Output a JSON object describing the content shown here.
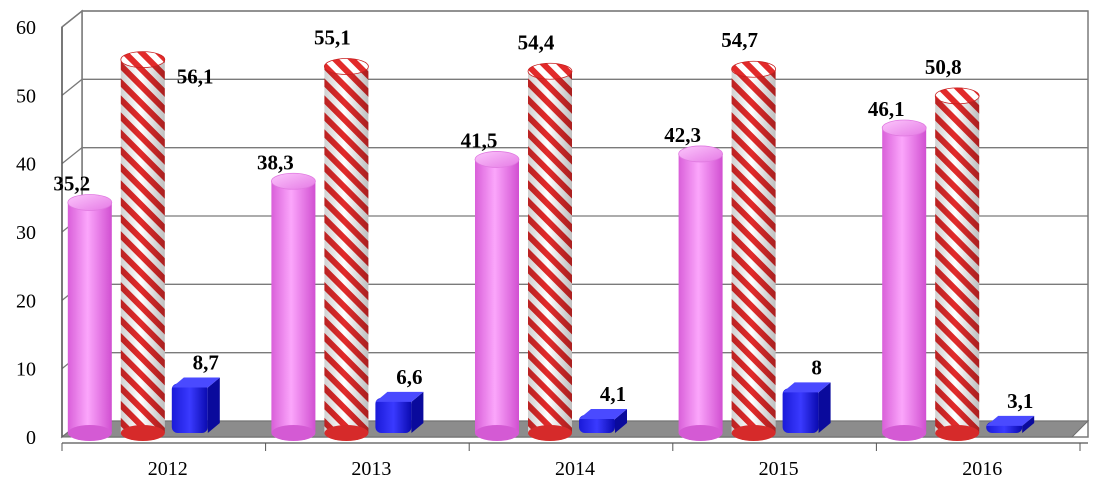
{
  "chart_data": {
    "type": "bar",
    "categories": [
      "2012",
      "2013",
      "2014",
      "2015",
      "2016"
    ],
    "series": [
      {
        "values": [
          35.2,
          38.3,
          41.5,
          42.3,
          46.1
        ],
        "color": "#f07cf0",
        "style": "solid-cylinder"
      },
      {
        "values": [
          56.1,
          55.1,
          54.4,
          54.7,
          50.8
        ],
        "color": "#e03030",
        "style": "diagonal-stripe-cylinder"
      },
      {
        "values": [
          8.7,
          6.6,
          4.1,
          8,
          3.1
        ],
        "color": "#1010e0",
        "style": "solid-box"
      }
    ],
    "data_labels": [
      [
        "35,2",
        "38,3",
        "41,5",
        "42,3",
        "46,1"
      ],
      [
        "56,1",
        "55,1",
        "54,4",
        "54,7",
        "50,8"
      ],
      [
        "8,7",
        "6,6",
        "4,1",
        "8",
        "3,1"
      ]
    ],
    "y_ticks": [
      "0",
      "10",
      "20",
      "30",
      "40",
      "50",
      "60"
    ],
    "ylim": [
      0,
      60
    ],
    "grid": true,
    "legend": "none"
  }
}
